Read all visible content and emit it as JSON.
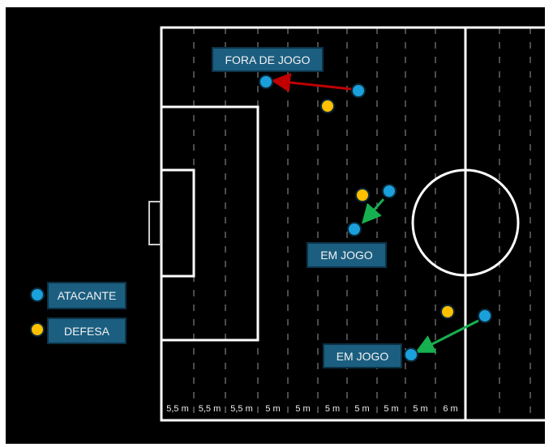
{
  "colors": {
    "attacker": "#1aa0dc",
    "defender": "#ffc000",
    "offside_arrow": "#c00000",
    "onside_arrow": "#17b050",
    "label_bg": "#1b5e80"
  },
  "legend": {
    "attacker": "ATACANTE",
    "defender": "DEFESA"
  },
  "labels": {
    "offside": "FORA DE JOGO",
    "onside_1": "EM JOGO",
    "onside_2": "EM JOGO"
  },
  "distances": [
    "5,5 m",
    "5,5 m",
    "5,5 m",
    "5 m",
    "5 m",
    "5 m",
    "5 m",
    "5 m",
    "5 m",
    "6 m"
  ]
}
